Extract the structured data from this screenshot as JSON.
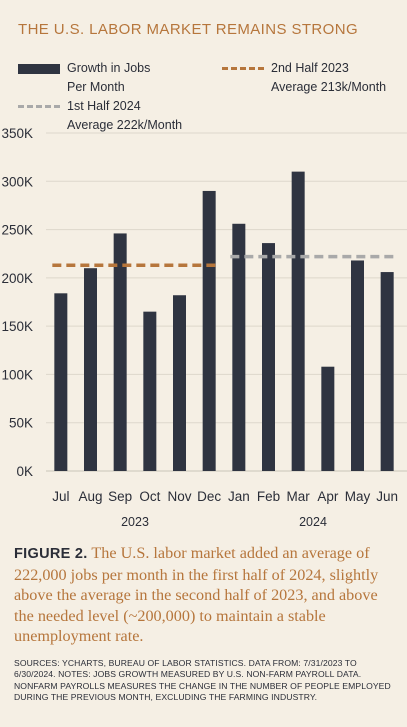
{
  "title": "THE U.S. LABOR MARKET REMAINS STRONG",
  "legend": {
    "bars_line1": "Growth in Jobs",
    "bars_line2": "Per Month",
    "h2_line1": "2nd Half 2023",
    "h2_line2": "Average 213k/Month",
    "h1_line1": "1st Half 2024",
    "h1_line2": "Average 222k/Month"
  },
  "chart_data": {
    "type": "bar",
    "categories": [
      "Jul",
      "Aug",
      "Sep",
      "Oct",
      "Nov",
      "Dec",
      "Jan",
      "Feb",
      "Mar",
      "Apr",
      "May",
      "Jun"
    ],
    "values": [
      184,
      210,
      246,
      165,
      182,
      290,
      256,
      236,
      310,
      108,
      218,
      206
    ],
    "unit": "K",
    "y_ticks": [
      "0K",
      "50K",
      "100K",
      "150K",
      "200K",
      "250K",
      "300K",
      "350K"
    ],
    "ylim": [
      0,
      350
    ],
    "year_labels": [
      "2023",
      "2024"
    ],
    "reference_lines": [
      {
        "label": "2nd Half 2023 Average 213k/Month",
        "value": 213,
        "from": "Jul",
        "to": "Dec",
        "color": "#b6763c"
      },
      {
        "label": "1st Half 2024 Average 222k/Month",
        "value": 222,
        "from": "Jan",
        "to": "Jun",
        "color": "#a9a9a9"
      }
    ],
    "bar_color": "#2f3441",
    "grid": true
  },
  "caption": {
    "figure": "FIGURE 2.",
    "text": "The U.S. labor market added an average of 222,000 jobs per month in the first half of 2024, slightly above the average in the second half of 2023, and above the needed level (~200,000) to maintain a stable unemployment rate."
  },
  "sources": "SOURCES: YCHARTS, BUREAU OF LABOR STATISTICS. DATA FROM: 7/31/2023 TO 6/30/2024. NOTES: JOBS GROWTH MEASURED BY U.S. NON-FARM PAYROLL DATA. NONFARM PAYROLLS MEASURES THE CHANGE IN THE NUMBER OF PEOPLE EMPLOYED DURING THE PREVIOUS MONTH, EXCLUDING THE FARMING INDUSTRY."
}
